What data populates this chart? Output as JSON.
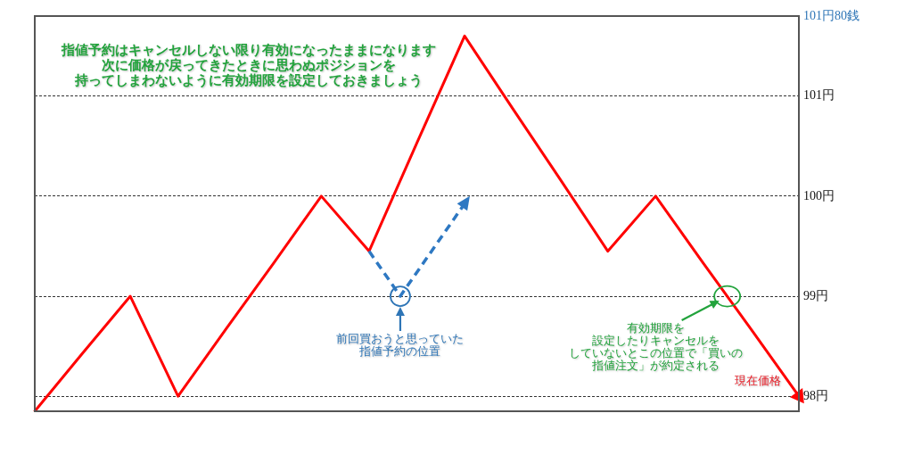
{
  "chart_data": {
    "type": "line",
    "title": "指値予約はキャンセルしない限り有効になったままになります",
    "subtitle": "次に価格が戻ってきたときに思わぬポジションを持ってしまわないように有効期限を設定しておきましょう",
    "categories": [
      null,
      null,
      null,
      null,
      null,
      null,
      null,
      null,
      null,
      null,
      null,
      null,
      null,
      null,
      null,
      null,
      null
    ],
    "series": [
      {
        "color": "#ff0000",
        "values": [
          97.85,
          98.43,
          99,
          98,
          98.67,
          99.33,
          100,
          99.45,
          100.53,
          101.6,
          100.88,
          100.17,
          99.45,
          100,
          99.33,
          98.67,
          98
        ]
      }
    ],
    "ylim": [
      97.85,
      101.8
    ],
    "yticks": [
      {
        "value": 98,
        "label": "98円"
      },
      {
        "value": 99,
        "label": "99円"
      },
      {
        "value": 100,
        "label": "100円"
      },
      {
        "value": 101,
        "label": "101円"
      },
      {
        "value": 101.8,
        "label": "101円80銭"
      }
    ],
    "grid": "y",
    "legend": false,
    "tick_labels": "y",
    "marker": "none",
    "line_style": "solid",
    "annotations": [
      "前回買おうと思っていた指値予約の位置",
      "有効期限を設定したりキャンセルをしていないとこの位置で「買いの指値注文」が約定される",
      "現在価格"
    ]
  }
}
